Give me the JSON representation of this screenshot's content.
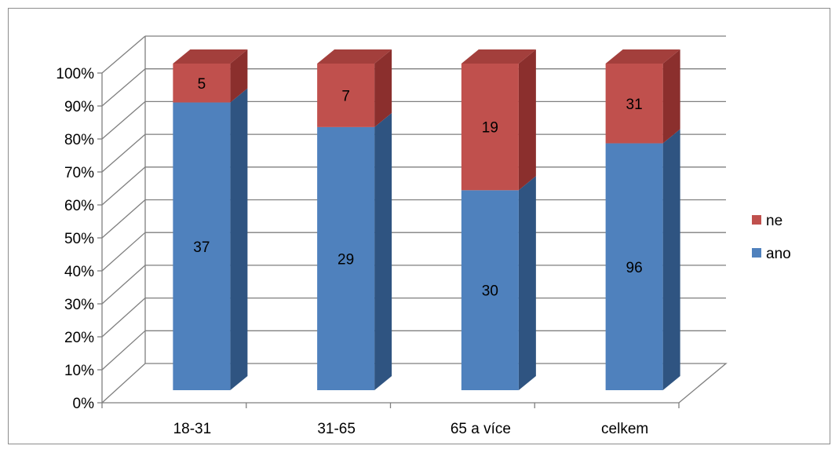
{
  "chart_data": {
    "type": "bar",
    "stacked": "percent",
    "three_d": true,
    "categories": [
      "18-31",
      "31-65",
      "65 a více",
      "celkem"
    ],
    "series": [
      {
        "name": "ano",
        "values": [
          37,
          29,
          30,
          96
        ],
        "color": "#4f81bd"
      },
      {
        "name": "ne",
        "values": [
          5,
          7,
          19,
          31
        ],
        "color": "#c0504d"
      }
    ],
    "y_ticks": [
      "0%",
      "10%",
      "20%",
      "30%",
      "40%",
      "50%",
      "60%",
      "70%",
      "80%",
      "90%",
      "100%"
    ],
    "ylim": [
      0,
      100
    ],
    "grid": true,
    "legend_position": "right",
    "legend_order": [
      "ne",
      "ano"
    ],
    "colors": {
      "ano": "#4f81bd",
      "ano_side": "#2f5481",
      "ano_top": "#3d6aa3",
      "ne": "#c0504d",
      "ne_side": "#8b2f2d",
      "ne_top": "#a33f3c",
      "gridline": "#7f7f7f"
    }
  }
}
